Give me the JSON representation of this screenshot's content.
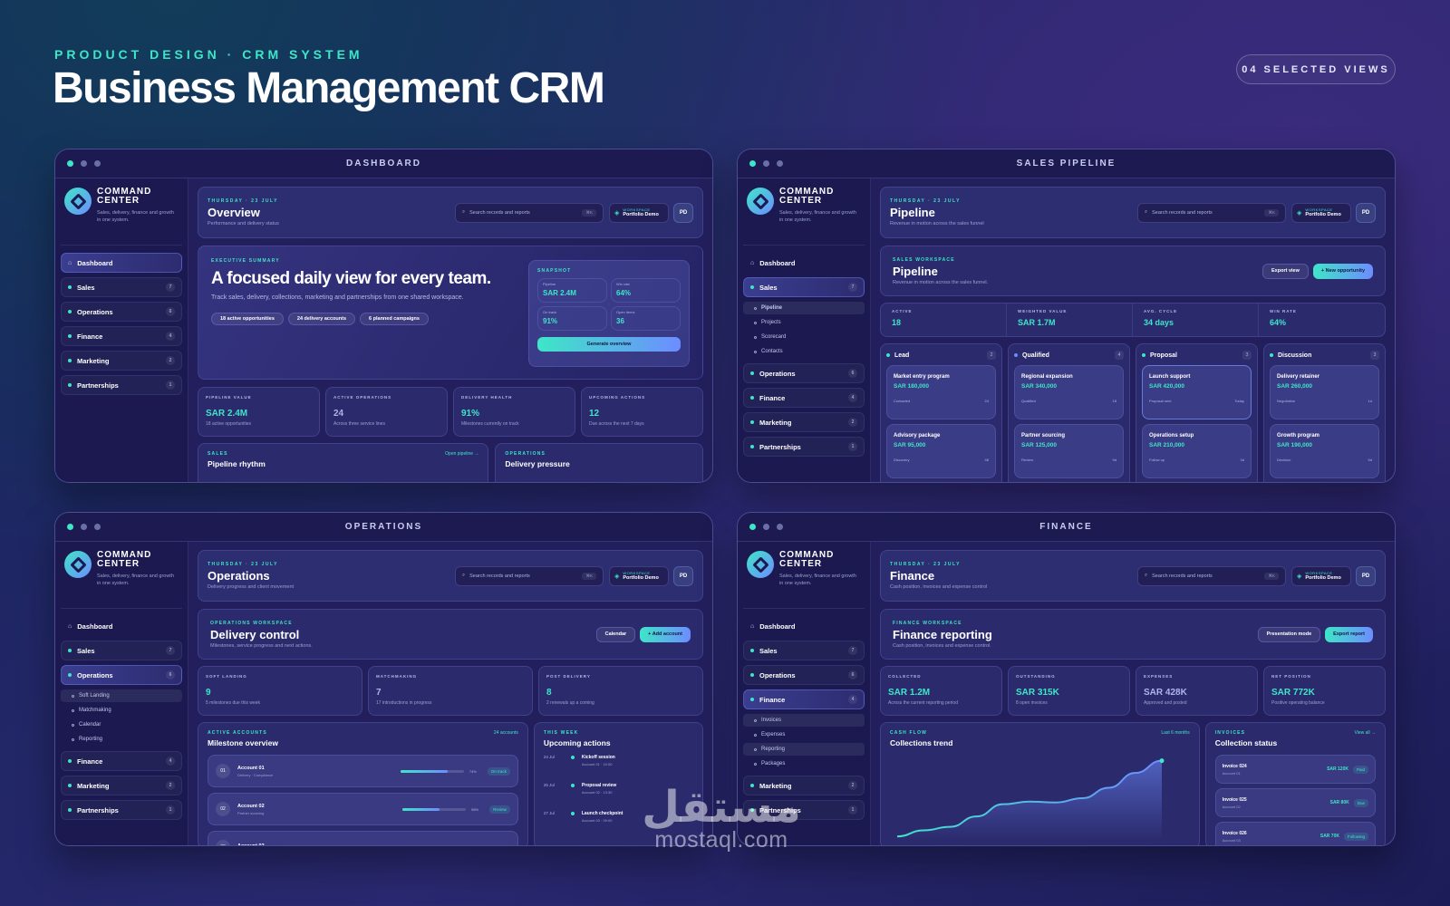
{
  "header": {
    "eyebrow": "PRODUCT DESIGN · CRM SYSTEM",
    "title": "Business Management CRM",
    "pill": "04 SELECTED VIEWS"
  },
  "brand": {
    "name1": "COMMAND",
    "name2": "CENTER",
    "sub": "Sales, delivery, finance and growth in one system."
  },
  "common": {
    "date": "THURSDAY · 23 JULY",
    "search_placeholder": "Search records and reports",
    "kbd": "⌘K",
    "ws_label": "WORKSPACE",
    "ws_name": "Portfolio Demo",
    "avatar": "PD"
  },
  "nav": {
    "dashboard": "Dashboard",
    "sales": "Sales",
    "operations": "Operations",
    "finance": "Finance",
    "marketing": "Marketing",
    "partnerships": "Partnerships",
    "sales_count": "7",
    "ops_count": "6",
    "fin_count": "4",
    "mkt_count": "2",
    "part_count": "1"
  },
  "dashboard": {
    "window": "DASHBOARD",
    "title": "Overview",
    "sub": "Performance and delivery status",
    "hero_label": "EXECUTIVE SUMMARY",
    "hero_title": "A focused daily view for every team.",
    "hero_sub": "Track sales, delivery, collections, marketing and partnerships from one shared workspace.",
    "chips": [
      "18 active opportunities",
      "24 delivery accounts",
      "6 planned campaigns"
    ],
    "snapshot_label": "SNAPSHOT",
    "snap": [
      {
        "l": "Pipeline",
        "v": "SAR 2.4M"
      },
      {
        "l": "Win rate",
        "v": "64%"
      },
      {
        "l": "On track",
        "v": "91%"
      },
      {
        "l": "Open items",
        "v": "36"
      }
    ],
    "snap_btn": "Generate overview",
    "stats": [
      {
        "l": "PIPELINE VALUE",
        "v": "SAR 2.4M",
        "s": "18 active opportunities"
      },
      {
        "l": "ACTIVE OPERATIONS",
        "v": "24",
        "s": "Across three service lines"
      },
      {
        "l": "DELIVERY HEALTH",
        "v": "91%",
        "s": "Milestones currently on track"
      },
      {
        "l": "UPCOMING ACTIONS",
        "v": "12",
        "s": "Due across the next 7 days"
      }
    ],
    "b1_label": "SALES",
    "b1_title": "Pipeline rhythm",
    "b1_link": "Open pipeline →",
    "b2_label": "OPERATIONS",
    "b2_title": "Delivery pressure"
  },
  "pipeline": {
    "window": "SALES PIPELINE",
    "title": "Pipeline",
    "sub": "Revenue in motion across the sales funnel",
    "ws_label": "SALES WORKSPACE",
    "ws_title": "Pipeline",
    "ws_sub": "Revenue in motion across the sales funnel.",
    "btn1": "Export view",
    "btn2": "+ New opportunity",
    "sub_items": [
      "Pipeline",
      "Projects",
      "Scorecard",
      "Contacts"
    ],
    "stats": [
      {
        "l": "ACTIVE",
        "v": "18"
      },
      {
        "l": "WEIGHTED VALUE",
        "v": "SAR 1.7M"
      },
      {
        "l": "AVG. CYCLE",
        "v": "34 days"
      },
      {
        "l": "WIN RATE",
        "v": "64%"
      }
    ],
    "cols": [
      {
        "name": "Lead",
        "count": "2",
        "cards": [
          {
            "t": "Market entry program",
            "v": "SAR 180,000",
            "s": "Contacted",
            "d": "24"
          },
          {
            "t": "Advisory package",
            "v": "SAR 95,000",
            "s": "Discovery",
            "d": "48"
          }
        ]
      },
      {
        "name": "Qualified",
        "count": "4",
        "cards": [
          {
            "t": "Regional expansion",
            "v": "SAR 340,000",
            "s": "Qualified",
            "d": "18"
          },
          {
            "t": "Partner sourcing",
            "v": "SAR 125,000",
            "s": "Review",
            "d": "9d"
          }
        ]
      },
      {
        "name": "Proposal",
        "count": "3",
        "cards": [
          {
            "t": "Launch support",
            "v": "SAR 420,000",
            "s": "Proposal sent",
            "d": "Today"
          },
          {
            "t": "Operations setup",
            "v": "SAR 210,000",
            "s": "Follow up",
            "d": "3d"
          }
        ]
      },
      {
        "name": "Discussion",
        "count": "3",
        "cards": [
          {
            "t": "Delivery retainer",
            "v": "SAR 260,000",
            "s": "Negotiation",
            "d": "1d"
          },
          {
            "t": "Growth program",
            "v": "SAR 190,000",
            "s": "Decision",
            "d": "5d"
          }
        ]
      }
    ]
  },
  "operations": {
    "window": "OPERATIONS",
    "title": "Operations",
    "sub": "Delivery progress and client movement",
    "ws_label": "OPERATIONS WORKSPACE",
    "ws_title": "Delivery control",
    "ws_sub": "Milestones, service progress and next actions.",
    "btn1": "Calendar",
    "btn2": "+ Add account",
    "sub_items": [
      "Soft Landing",
      "Matchmaking",
      "Calendar",
      "Reporting"
    ],
    "stats": [
      {
        "l": "SOFT LANDING",
        "v": "9",
        "s": "5 milestones due this week"
      },
      {
        "l": "MATCHMAKING",
        "v": "7",
        "s": "17 introductions in progress"
      },
      {
        "l": "POST DELIVERY",
        "v": "8",
        "s": "2 renewals up a coming"
      }
    ],
    "acc_label": "ACTIVE ACCOUNTS",
    "acc_title": "Milestone overview",
    "acc_link": "24 accounts",
    "accounts": [
      {
        "n": "01",
        "t": "Account 01",
        "s": "Delivery · Compliance",
        "p": 0.74,
        "pl": "74%",
        "b": "On track"
      },
      {
        "n": "02",
        "t": "Account 02",
        "s": "Partner sourcing",
        "p": 0.58,
        "pl": "58%",
        "b": "Review"
      },
      {
        "n": "03",
        "t": "Account 03",
        "s": "",
        "p": 0,
        "pl": "",
        "b": ""
      }
    ],
    "wk_label": "THIS WEEK",
    "wk_title": "Upcoming actions",
    "actions": [
      {
        "d": "24 Jul",
        "t": "Kickoff session",
        "s": "Account 01 · 10:00"
      },
      {
        "d": "25 Jul",
        "t": "Proposal review",
        "s": "Account 02 · 13:30"
      },
      {
        "d": "27 Jul",
        "t": "Launch checkpoint",
        "s": "Account 03 · 09:00"
      }
    ]
  },
  "finance": {
    "window": "FINANCE",
    "title": "Finance",
    "sub": "Cash position, invoices and expense control",
    "ws_label": "FINANCE WORKSPACE",
    "ws_title": "Finance reporting",
    "ws_sub": "Cash position, invoices and expense control.",
    "btn1": "Presentation mode",
    "btn2": "Export report",
    "sub_items": [
      "Invoices",
      "Expenses",
      "Reporting",
      "Packages"
    ],
    "stats": [
      {
        "l": "COLLECTED",
        "v": "SAR 1.2M",
        "s": "Across the current reporting period"
      },
      {
        "l": "OUTSTANDING",
        "v": "SAR 315K",
        "s": "8 open invoices"
      },
      {
        "l": "EXPENSES",
        "v": "SAR 428K",
        "s": "Approved and posted"
      },
      {
        "l": "NET POSITION",
        "v": "SAR 772K",
        "s": "Positive operating balance"
      }
    ],
    "cf_label": "CASH FLOW",
    "cf_title": "Collections trend",
    "cf_link": "Last 6 months",
    "inv_label": "INVOICES",
    "inv_title": "Collection status",
    "inv_link": "View all →",
    "invoices": [
      {
        "t": "Invoice 024",
        "s": "Account 01",
        "v": "SAR 120K",
        "b": "Paid"
      },
      {
        "t": "Invoice 025",
        "s": "Account 02",
        "v": "SAR 80K",
        "b": "Due"
      },
      {
        "t": "Invoice 026",
        "s": "Account 03",
        "v": "SAR 70K",
        "b": "Following"
      }
    ]
  },
  "trend": [
    0.05,
    0.12,
    0.16,
    0.28,
    0.42,
    0.45,
    0.44,
    0.49,
    0.61,
    0.78,
    0.92
  ],
  "watermark": {
    "ar": "مستقل",
    "en": "mostaql.com"
  }
}
